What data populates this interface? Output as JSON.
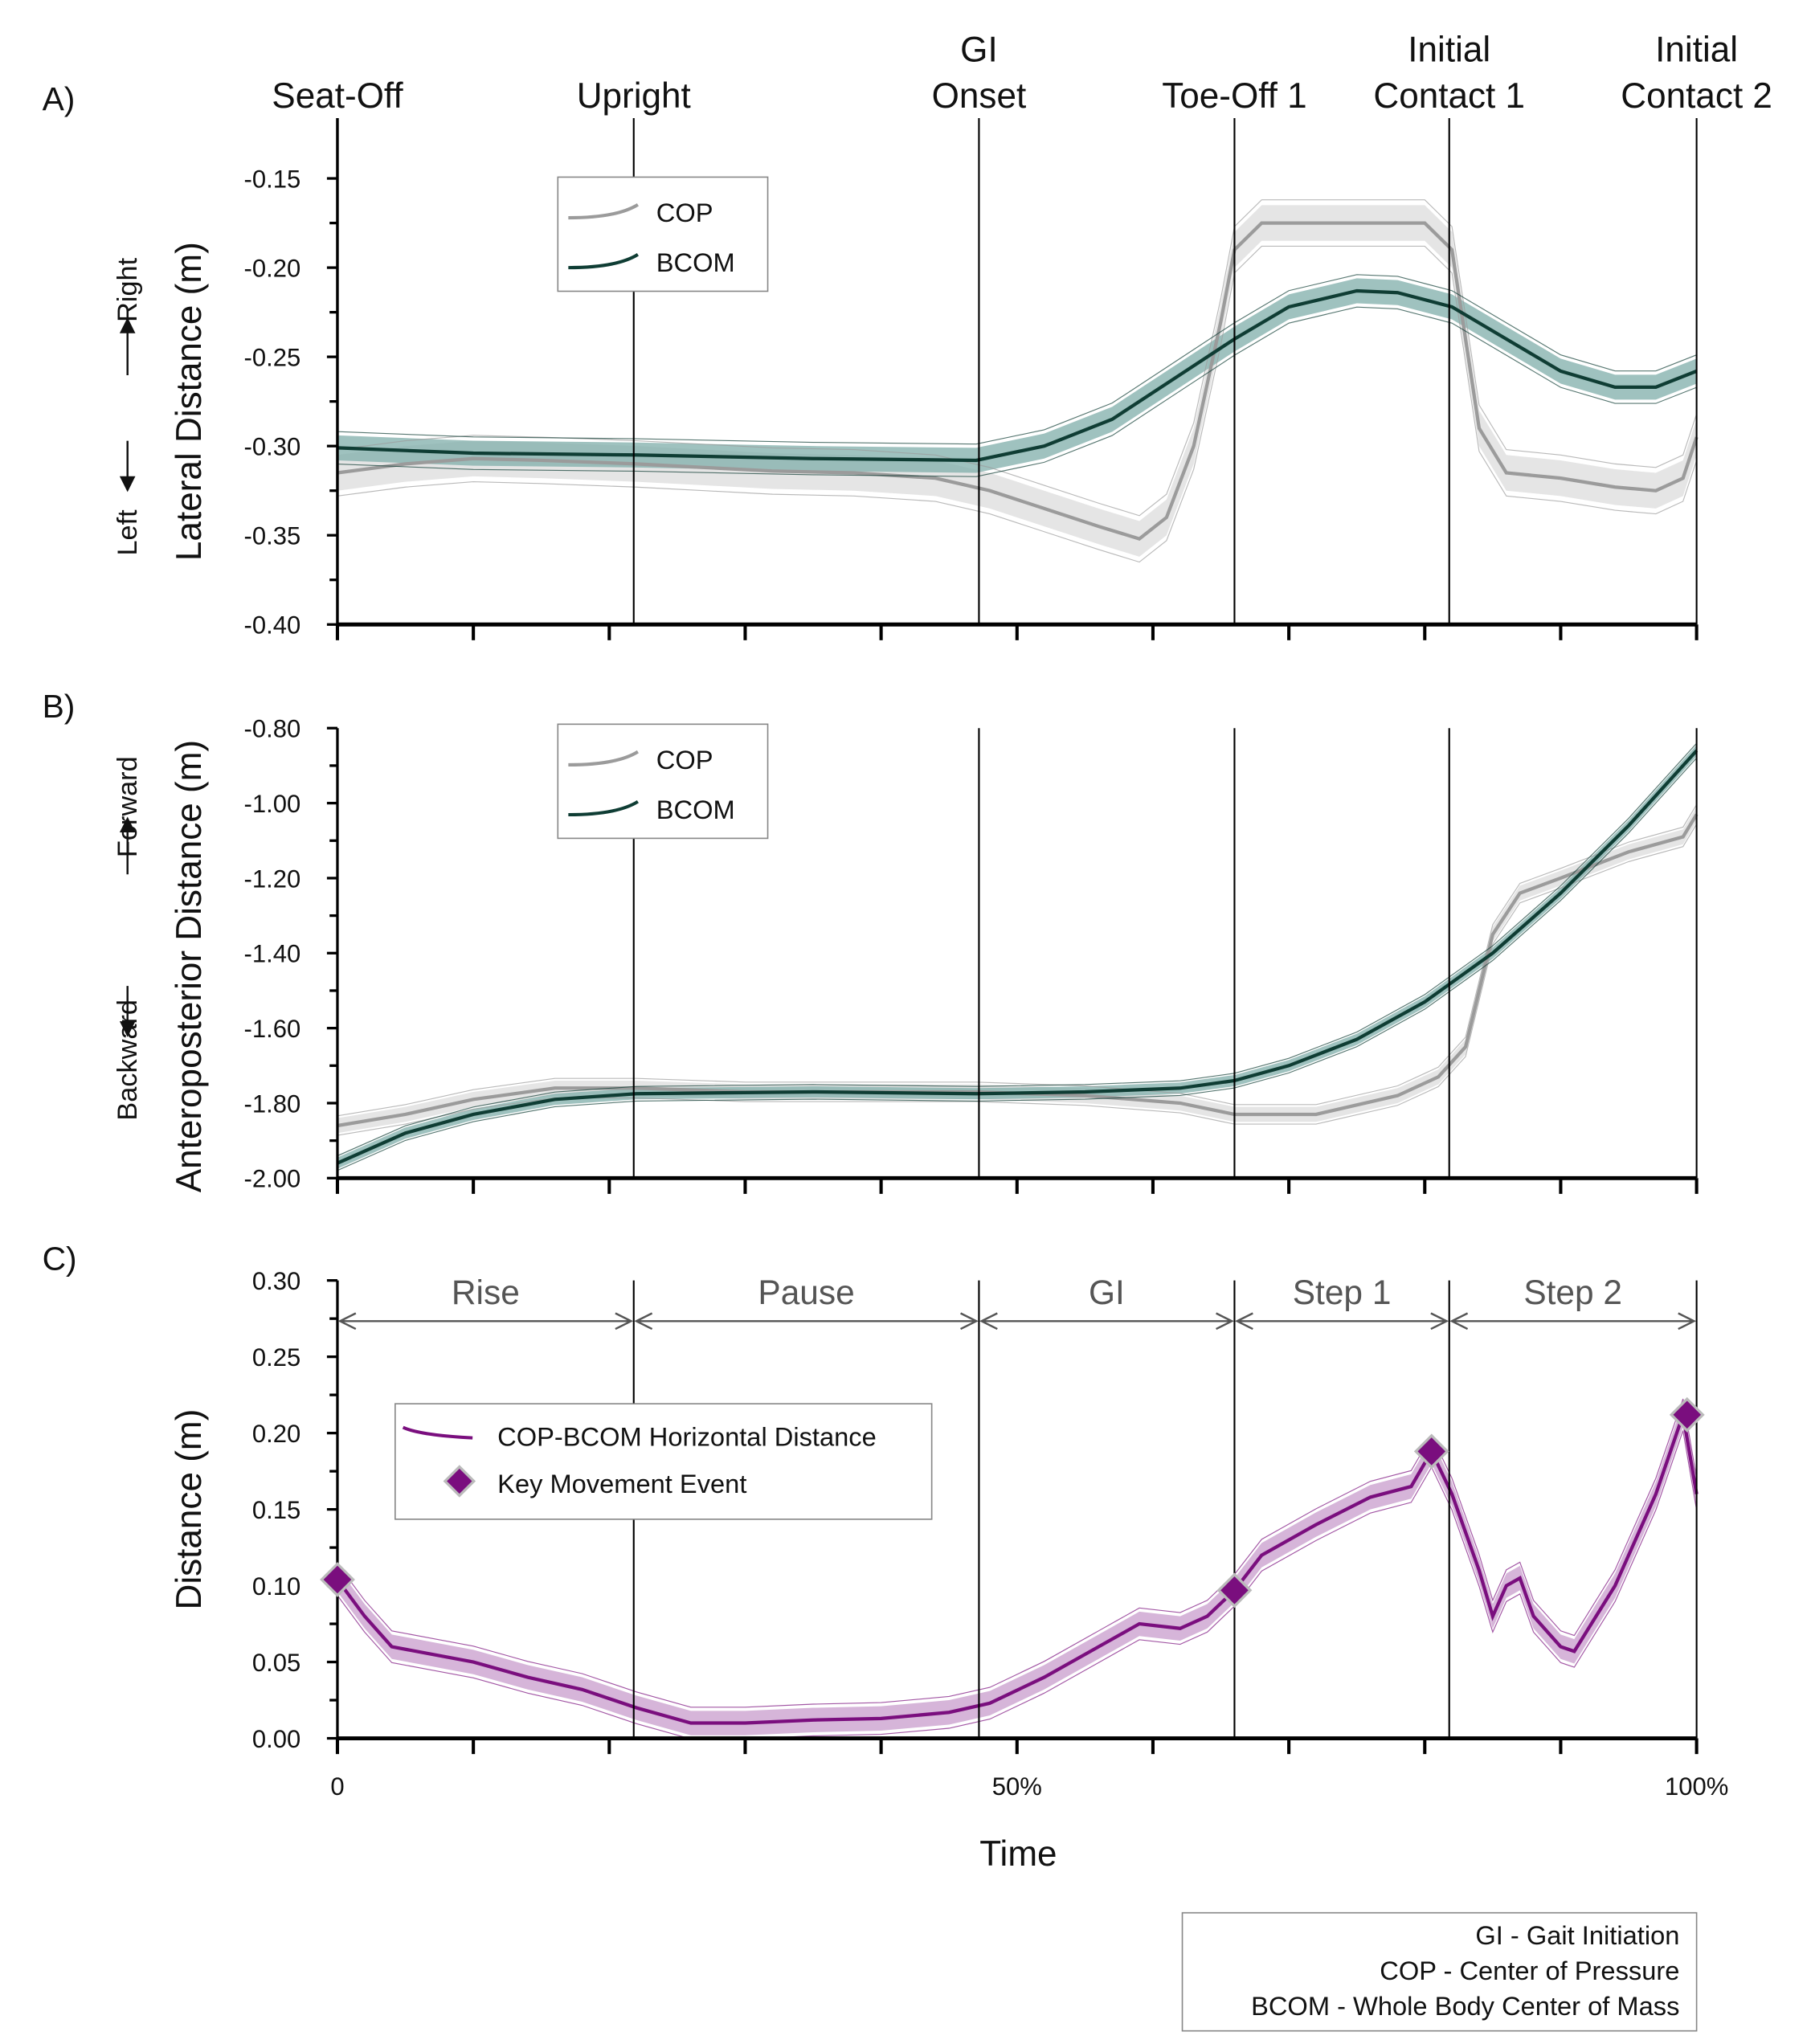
{
  "events": [
    {
      "label": [
        "Seat-Off"
      ],
      "x": 0
    },
    {
      "label": [
        "Upright"
      ],
      "x": 21.8
    },
    {
      "label": [
        "GI",
        "Onset"
      ],
      "x": 47.2
    },
    {
      "label": [
        "Toe-Off 1"
      ],
      "x": 66.0
    },
    {
      "label": [
        "Initial",
        "Contact 1"
      ],
      "x": 81.8
    },
    {
      "label": [
        "Initial",
        "Contact 2"
      ],
      "x": 100
    }
  ],
  "xaxis": {
    "label": "Time",
    "ticks": [
      0,
      10,
      20,
      30,
      40,
      50,
      60,
      70,
      80,
      90,
      100
    ],
    "tick_labels": {
      "0": "0",
      "50": "50%",
      "100": "100%"
    }
  },
  "colors": {
    "cop": "#9b9b9b",
    "cop_band": "#dcdcdc",
    "bcom": "#0f3d34",
    "bcom_band": "#7fadaa",
    "dist": "#7a0e7e",
    "dist_band": "#c89ccc"
  },
  "chart_data": [
    {
      "panel": "A)",
      "type": "line",
      "ylabel": "Lateral Distance (m)",
      "direction": {
        "low": "Left",
        "high": "Right"
      },
      "ylim": [
        -0.4,
        -0.15
      ],
      "yticks": [
        -0.15,
        -0.2,
        -0.25,
        -0.3,
        -0.35,
        -0.4
      ],
      "ytick_labels": [
        "-0.15",
        "-0.20",
        "-0.25",
        "-0.30",
        "-0.35",
        "-0.40"
      ],
      "legend": "top-left",
      "series": [
        {
          "name": "COP",
          "band": 0.01,
          "x": [
            0,
            5,
            10,
            15,
            22,
            27,
            32,
            38,
            44,
            48,
            52,
            56,
            59,
            61,
            63,
            65,
            66,
            68,
            75,
            80,
            82,
            84,
            86,
            90,
            94,
            97,
            99,
            100
          ],
          "y": [
            -0.315,
            -0.31,
            -0.307,
            -0.308,
            -0.31,
            -0.312,
            -0.314,
            -0.315,
            -0.318,
            -0.325,
            -0.335,
            -0.345,
            -0.352,
            -0.34,
            -0.3,
            -0.23,
            -0.19,
            -0.175,
            -0.175,
            -0.175,
            -0.19,
            -0.29,
            -0.315,
            -0.318,
            -0.323,
            -0.325,
            -0.318,
            -0.295
          ]
        },
        {
          "name": "BCOM",
          "band": 0.007,
          "x": [
            0,
            10,
            22,
            35,
            47,
            52,
            57,
            62,
            66,
            70,
            75,
            78,
            82,
            86,
            90,
            94,
            97,
            100
          ],
          "y": [
            -0.301,
            -0.304,
            -0.305,
            -0.307,
            -0.308,
            -0.3,
            -0.285,
            -0.26,
            -0.24,
            -0.222,
            -0.213,
            -0.214,
            -0.222,
            -0.24,
            -0.258,
            -0.267,
            -0.267,
            -0.258
          ]
        }
      ]
    },
    {
      "panel": "B)",
      "type": "line",
      "ylabel": "Anteroposterior Distance (m)",
      "direction": {
        "low": "Backward",
        "high": "Forward"
      },
      "ylim": [
        -2.0,
        -0.8
      ],
      "yticks": [
        -0.8,
        -1.0,
        -1.2,
        -1.4,
        -1.6,
        -1.8,
        -2.0
      ],
      "ytick_labels": [
        "-0.80",
        "-1.00",
        "-1.20",
        "-1.40",
        "-1.60",
        "-1.80",
        "-2.00"
      ],
      "legend": "top-left",
      "series": [
        {
          "name": "COP",
          "band": 0.02,
          "x": [
            0,
            5,
            10,
            16,
            22,
            30,
            40,
            47,
            55,
            62,
            66,
            72,
            78,
            81,
            83,
            85,
            87,
            90,
            95,
            99,
            100
          ],
          "y": [
            -1.86,
            -1.83,
            -1.79,
            -1.76,
            -1.76,
            -1.77,
            -1.77,
            -1.77,
            -1.78,
            -1.8,
            -1.83,
            -1.83,
            -1.78,
            -1.73,
            -1.65,
            -1.35,
            -1.24,
            -1.2,
            -1.13,
            -1.09,
            -1.03
          ]
        },
        {
          "name": "BCOM",
          "band": 0.015,
          "x": [
            0,
            5,
            10,
            16,
            22,
            35,
            47,
            55,
            62,
            66,
            70,
            75,
            80,
            85,
            90,
            95,
            100
          ],
          "y": [
            -1.96,
            -1.88,
            -1.83,
            -1.79,
            -1.775,
            -1.77,
            -1.775,
            -1.77,
            -1.76,
            -1.74,
            -1.7,
            -1.63,
            -1.53,
            -1.4,
            -1.24,
            -1.06,
            -0.86
          ]
        }
      ]
    },
    {
      "panel": "C)",
      "type": "line",
      "ylabel": "Distance (m)",
      "ylim": [
        0,
        0.3
      ],
      "yticks": [
        0.3,
        0.25,
        0.2,
        0.15,
        0.1,
        0.05,
        0.0
      ],
      "ytick_labels": [
        "0.30",
        "0.25",
        "0.20",
        "0.15",
        "0.10",
        "0.05",
        "0.00"
      ],
      "legend": "middle-left",
      "phases": [
        "Rise",
        "Pause",
        "GI",
        "Step 1",
        "Step 2"
      ],
      "series": [
        {
          "name": "COP-BCOM Horizontal Distance",
          "band": 0.008,
          "x": [
            0,
            2,
            4,
            7,
            10,
            14,
            18,
            22,
            26,
            30,
            35,
            40,
            45,
            48,
            52,
            56,
            59,
            62,
            64,
            66,
            68,
            72,
            76,
            79,
            80.5,
            82,
            84,
            85,
            86,
            87,
            88,
            90,
            91,
            94,
            97,
            99,
            100
          ],
          "y": [
            0.104,
            0.08,
            0.06,
            0.055,
            0.05,
            0.04,
            0.032,
            0.02,
            0.01,
            0.01,
            0.012,
            0.013,
            0.017,
            0.023,
            0.04,
            0.06,
            0.075,
            0.072,
            0.08,
            0.097,
            0.12,
            0.14,
            0.158,
            0.165,
            0.188,
            0.16,
            0.11,
            0.08,
            0.1,
            0.105,
            0.08,
            0.06,
            0.057,
            0.1,
            0.16,
            0.212,
            0.16
          ]
        },
        {
          "name": "Key Movement Event",
          "marker": "diamond",
          "x": [
            0,
            66,
            80.5,
            99.3
          ],
          "y": [
            0.104,
            0.097,
            0.188,
            0.212
          ]
        }
      ]
    }
  ],
  "footnote": [
    "GI - Gait Initiation",
    "COP - Center of Pressure",
    "BCOM - Whole Body Center of Mass"
  ]
}
